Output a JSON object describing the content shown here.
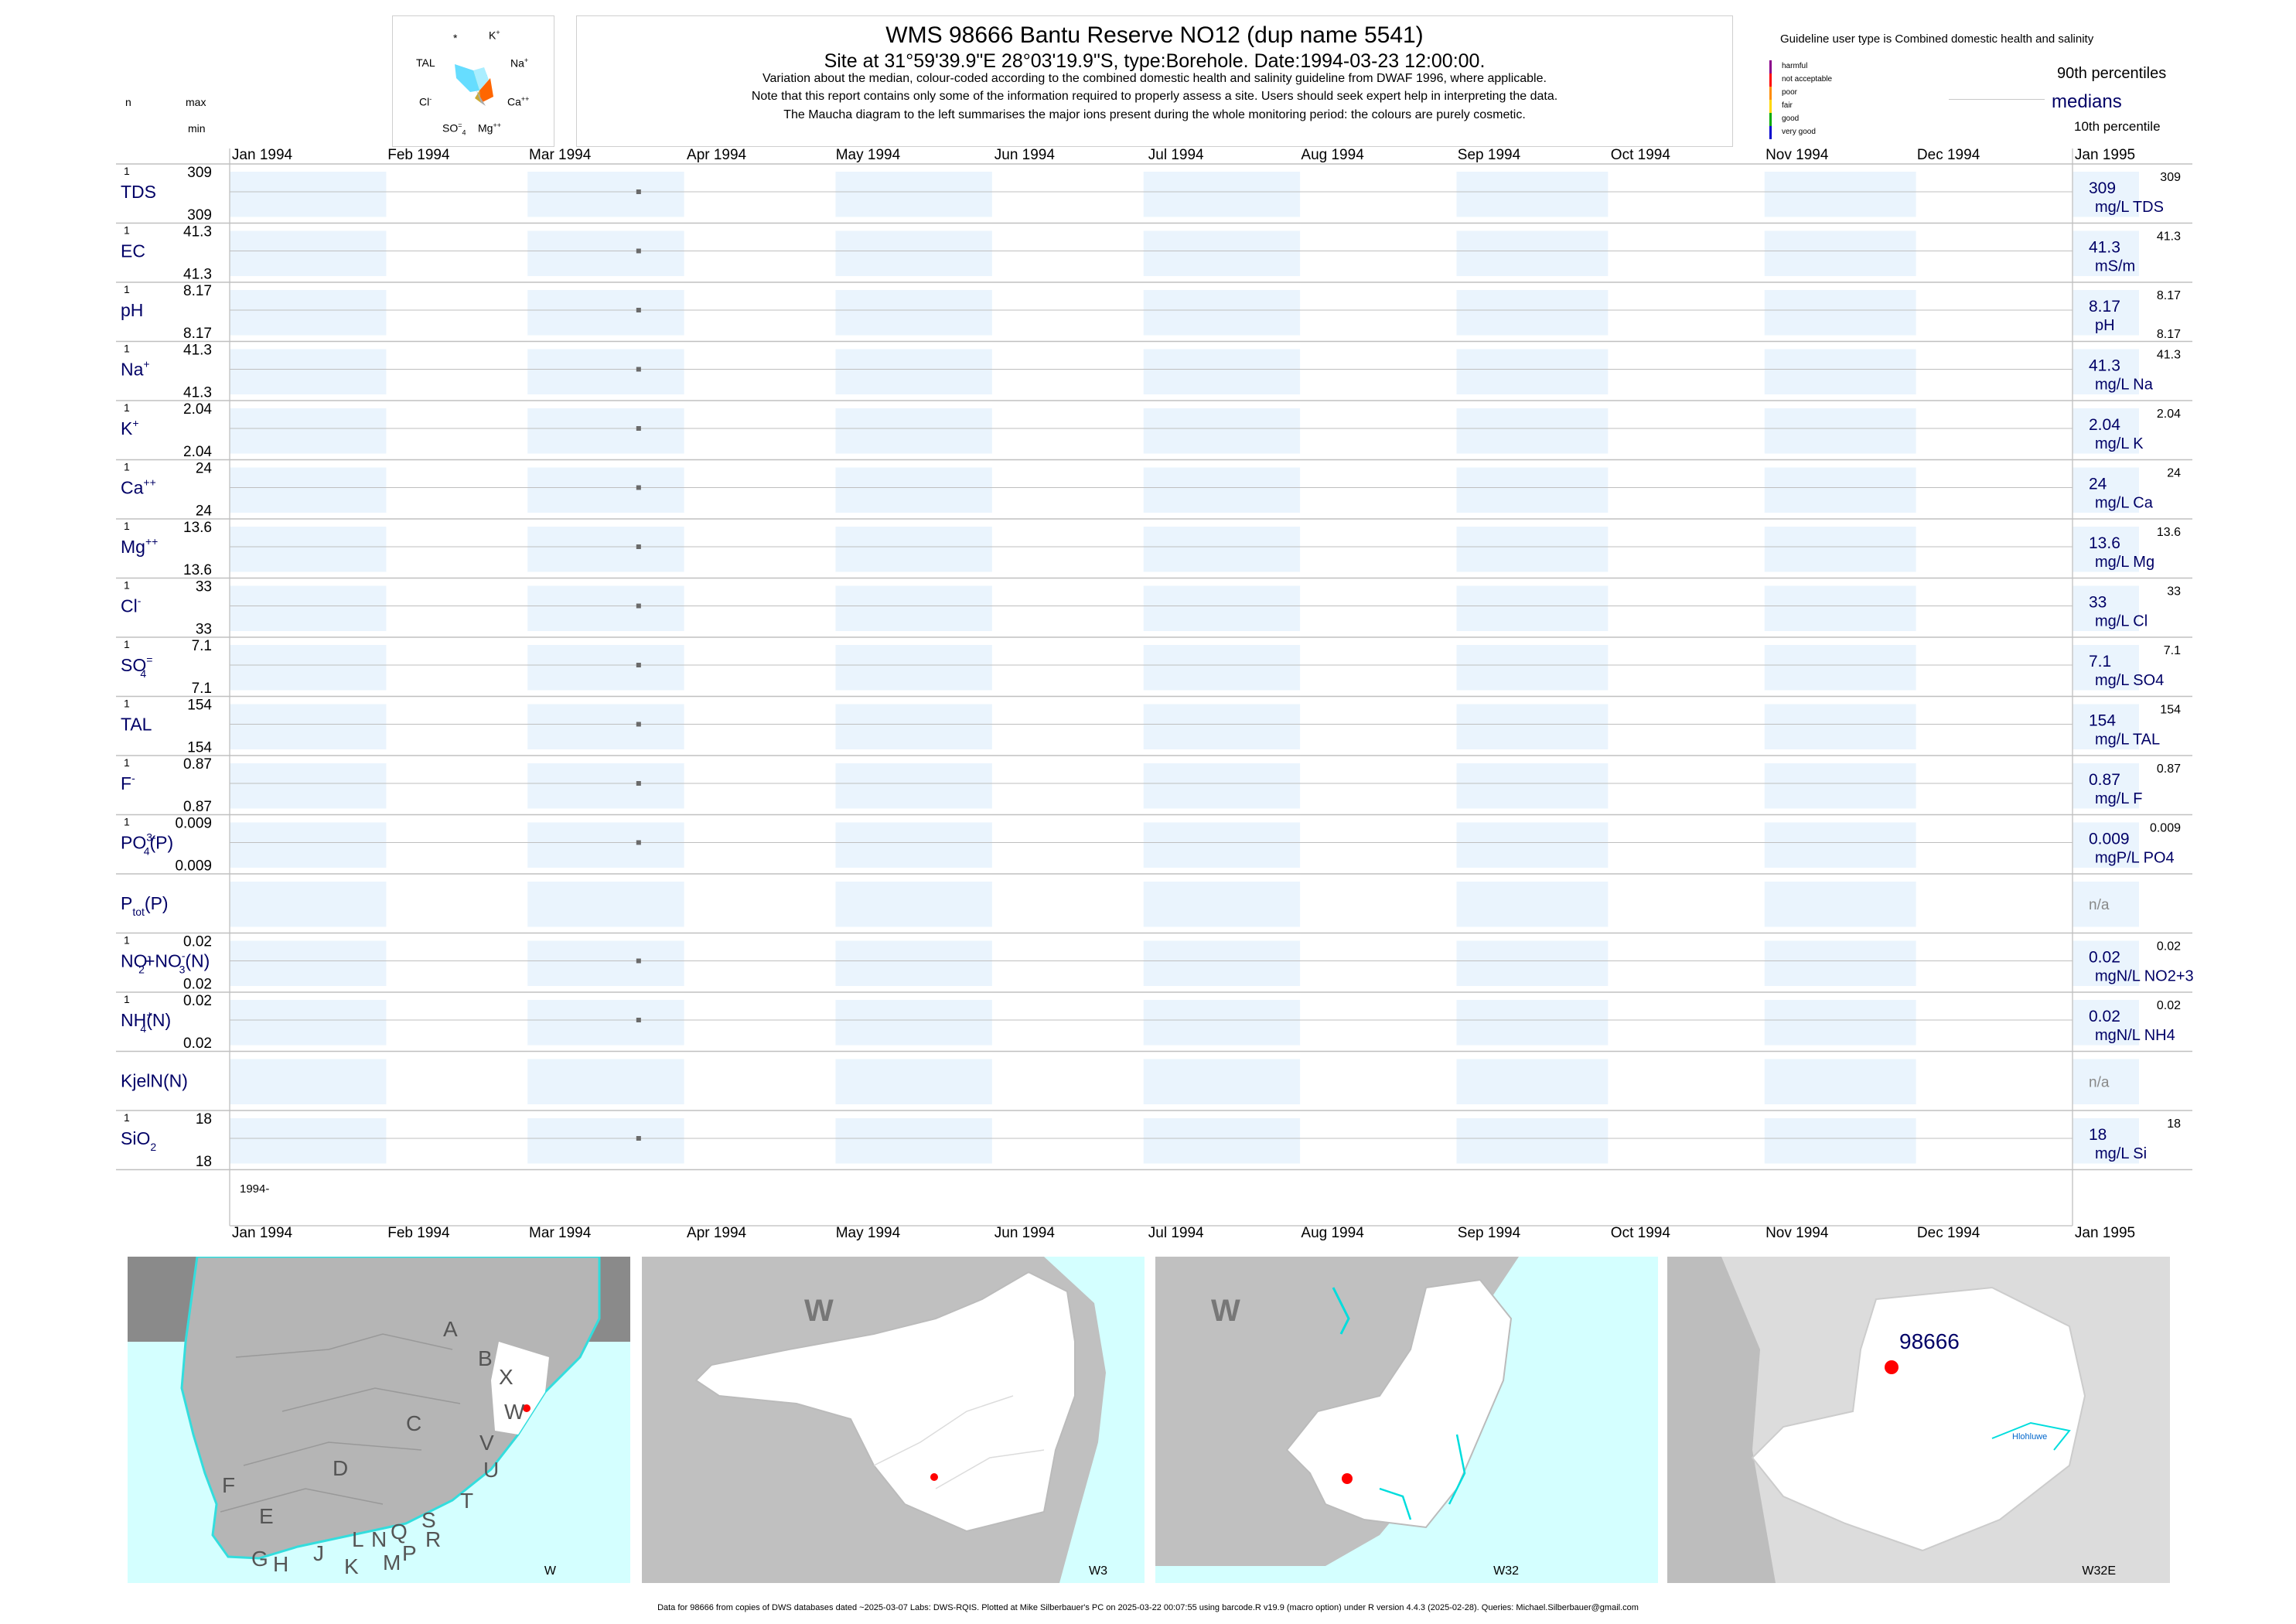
{
  "header": {
    "title": "WMS 98666  Bantu Reserve NO12 (dup name 5541)",
    "subtitle": "Site at 31°59'39.9\"E 28°03'19.9\"S, type:Borehole. Date:1994-03-23 12:00:00.",
    "notes": [
      "Variation about the median,  colour-coded according to the combined domestic health and salinity guideline from DWAF 1996, where applicable.",
      "Note that this report contains only some of the information required to properly assess a site. Users should seek expert help in interpreting the data.",
      "The Maucha diagram to the left summarises the major ions present during the whole monitoring period: the colours are purely cosmetic."
    ],
    "col_n": "n",
    "col_max": "max",
    "col_min": "min"
  },
  "maucha": {
    "labels": {
      "star": "*",
      "k": "K",
      "na": "Na",
      "ca": "Ca",
      "mg": "Mg",
      "so4": "SO",
      "cl": "Cl",
      "tal": "TAL"
    },
    "sup": {
      "k": "+",
      "na": "+",
      "ca": "++",
      "mg": "++",
      "so4": "=",
      "cl": "-"
    },
    "sub": {
      "so4": "4"
    }
  },
  "legend": {
    "guideline_title": "Guideline user type is Combined domestic health and salinity",
    "classes": [
      {
        "label": "harmful",
        "color": "#8b008b"
      },
      {
        "label": "not acceptable",
        "color": "#ff0000"
      },
      {
        "label": "poor",
        "color": "#ff8c00"
      },
      {
        "label": "fair",
        "color": "#ffd700"
      },
      {
        "label": "good",
        "color": "#00aa00"
      },
      {
        "label": "very good",
        "color": "#0000cd"
      }
    ],
    "p90": "90th percentiles",
    "medians": "medians",
    "p10": "10th percentile"
  },
  "chart_data": {
    "type": "scatter",
    "x_axis": {
      "type": "date",
      "range": [
        "1994-01-01",
        "1995-01-01"
      ],
      "tick_labels": [
        "Jan 1994",
        "Feb 1994",
        "Mar 1994",
        "Apr 1994",
        "May 1994",
        "Jun 1994",
        "Jul 1994",
        "Aug 1994",
        "Sep 1994",
        "Oct 1994",
        "Nov 1994",
        "Dec 1994",
        "Jan 1995"
      ],
      "year_label": "1994-"
    },
    "series": [
      {
        "name": "TDS",
        "sup": "",
        "sub": "",
        "post": "",
        "n": "1",
        "max": "309",
        "min": "309",
        "date": "1994-03-23",
        "value": 309,
        "median": "309",
        "units": "mg/L TDS",
        "p90": "309",
        "p10": ""
      },
      {
        "name": "EC",
        "sup": "",
        "sub": "",
        "post": "",
        "n": "1",
        "max": "41.3",
        "min": "41.3",
        "date": "1994-03-23",
        "value": 41.3,
        "median": "41.3",
        "units": "mS/m",
        "p90": "41.3",
        "p10": ""
      },
      {
        "name": "pH",
        "sup": "",
        "sub": "",
        "post": "",
        "n": "1",
        "max": "8.17",
        "min": "8.17",
        "date": "1994-03-23",
        "value": 8.17,
        "median": "8.17",
        "units": "pH",
        "p90": "8.17",
        "p10": "8.17"
      },
      {
        "name": "Na",
        "sup": "+",
        "sub": "",
        "post": "",
        "n": "1",
        "max": "41.3",
        "min": "41.3",
        "date": "1994-03-23",
        "value": 41.3,
        "median": "41.3",
        "units": "mg/L Na",
        "p90": "41.3",
        "p10": ""
      },
      {
        "name": "K",
        "sup": "+",
        "sub": "",
        "post": "",
        "n": "1",
        "max": "2.04",
        "min": "2.04",
        "date": "1994-03-23",
        "value": 2.04,
        "median": "2.04",
        "units": "mg/L K",
        "p90": "2.04",
        "p10": ""
      },
      {
        "name": "Ca",
        "sup": "++",
        "sub": "",
        "post": "",
        "n": "1",
        "max": "24",
        "min": "24",
        "date": "1994-03-23",
        "value": 24,
        "median": "24",
        "units": "mg/L Ca",
        "p90": "24",
        "p10": ""
      },
      {
        "name": "Mg",
        "sup": "++",
        "sub": "",
        "post": "",
        "n": "1",
        "max": "13.6",
        "min": "13.6",
        "date": "1994-03-23",
        "value": 13.6,
        "median": "13.6",
        "units": "mg/L Mg",
        "p90": "13.6",
        "p10": ""
      },
      {
        "name": "Cl",
        "sup": "-",
        "sub": "",
        "post": "",
        "n": "1",
        "max": "33",
        "min": "33",
        "date": "1994-03-23",
        "value": 33,
        "median": "33",
        "units": "mg/L Cl",
        "p90": "33",
        "p10": ""
      },
      {
        "name": "SO",
        "sup": "=",
        "sub": "4",
        "post": "",
        "n": "1",
        "max": "7.1",
        "min": "7.1",
        "date": "1994-03-23",
        "value": 7.1,
        "median": "7.1",
        "units": "mg/L SO4",
        "p90": "7.1",
        "p10": ""
      },
      {
        "name": "TAL",
        "sup": "",
        "sub": "",
        "post": "",
        "n": "1",
        "max": "154",
        "min": "154",
        "date": "1994-03-23",
        "value": 154,
        "median": "154",
        "units": "mg/L TAL",
        "p90": "154",
        "p10": ""
      },
      {
        "name": "F",
        "sup": "-",
        "sub": "",
        "post": "",
        "n": "1",
        "max": "0.87",
        "min": "0.87",
        "date": "1994-03-23",
        "value": 0.87,
        "median": "0.87",
        "units": "mg/L F",
        "p90": "0.87",
        "p10": ""
      },
      {
        "name": "PO",
        "sup": "3-",
        "sub": "4",
        "post": "(P)",
        "n": "1",
        "max": "0.009",
        "min": "0.009",
        "date": "1994-03-23",
        "value": 0.009,
        "median": "0.009",
        "units": "mgP/L PO4",
        "p90": "0.009",
        "p10": ""
      },
      {
        "name": "P",
        "sup": "",
        "sub": "tot",
        "post": "(P)",
        "n": "",
        "max": "",
        "min": "",
        "date": "",
        "value": null,
        "median": "n/a",
        "units": "",
        "p90": "",
        "p10": ""
      },
      {
        "name": "NO",
        "sup": "-",
        "sub": "2",
        "post": "+NO",
        "post_sup": "-",
        "post_sub": "3",
        "post2": "(N)",
        "n": "1",
        "max": "0.02",
        "min": "0.02",
        "date": "1994-03-23",
        "value": 0.02,
        "median": "0.02",
        "units": "mgN/L NO2+3",
        "p90": "0.02",
        "p10": ""
      },
      {
        "name": "NH",
        "sup": "+",
        "sub": "4",
        "post": "(N)",
        "n": "1",
        "max": "0.02",
        "min": "0.02",
        "date": "1994-03-23",
        "value": 0.02,
        "median": "0.02",
        "units": "mgN/L NH4",
        "p90": "0.02",
        "p10": ""
      },
      {
        "name": "KjelN(N)",
        "sup": "",
        "sub": "",
        "post": "",
        "n": "",
        "max": "",
        "min": "",
        "date": "",
        "value": null,
        "median": "n/a",
        "units": "",
        "p90": "",
        "p10": ""
      },
      {
        "name": "SiO",
        "sup": "",
        "sub": "2",
        "post": "",
        "n": "1",
        "max": "18",
        "min": "18",
        "date": "1994-03-23",
        "value": 18,
        "median": "18",
        "units": "mg/L Si",
        "p90": "18",
        "p10": ""
      }
    ]
  },
  "maps": [
    {
      "label": "W",
      "region_letters": [
        "A",
        "B",
        "X",
        "W",
        "C",
        "V",
        "D",
        "U",
        "F",
        "T",
        "E",
        "S",
        "L",
        "N",
        "Q",
        "R",
        "G",
        "H",
        "J",
        "K",
        "M",
        "P"
      ]
    },
    {
      "label": "W3",
      "big_letter": "W"
    },
    {
      "label": "W32",
      "big_letter": "W"
    },
    {
      "label": "W32E",
      "site": "98666",
      "place": "Hlohluwe"
    }
  ],
  "footer": "Data for 98666 from copies of DWS databases dated ~2025-03-07 Labs: DWS-RQIS. Plotted at Mike Silberbauer's PC on 2025-03-22 00:07:55 using barcode.R v19.9 (macro option) under R version 4.4.3 (2025-02-28). Queries: Michael.Silberbauer@gmail.com"
}
